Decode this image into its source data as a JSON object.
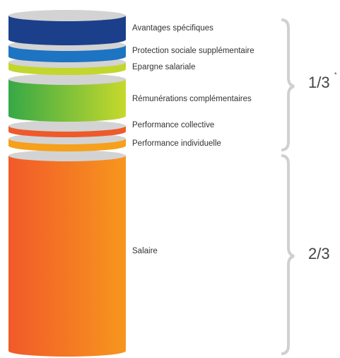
{
  "layers": [
    {
      "label": "Avantages spécifiques"
    },
    {
      "label": "Protection sociale supplémentaire"
    },
    {
      "label": "Epargne salariale"
    },
    {
      "label": "Rémunérations complémentaires"
    },
    {
      "label": "Performance collective"
    },
    {
      "label": "Performance individuelle"
    },
    {
      "label": "Salaire"
    }
  ],
  "brackets": [
    {
      "label": "1/3",
      "note": "*"
    },
    {
      "label": "2/3"
    }
  ]
}
